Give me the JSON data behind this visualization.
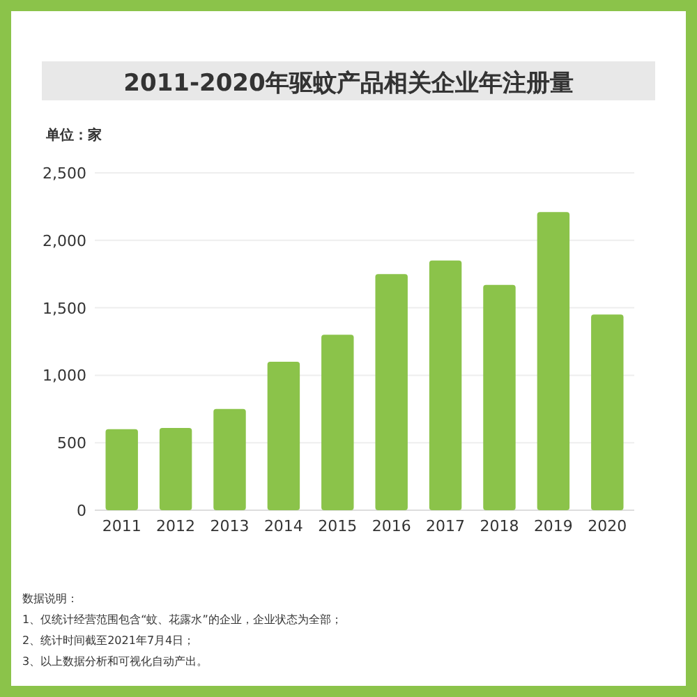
{
  "chart_data": {
    "type": "bar",
    "title": "2011-2020年驱蚊产品相关企业年注册量",
    "ylabel": "单位：家",
    "categories": [
      "2011",
      "2012",
      "2013",
      "2014",
      "2015",
      "2016",
      "2017",
      "2018",
      "2019",
      "2020"
    ],
    "values": [
      600,
      610,
      750,
      1100,
      1300,
      1750,
      1850,
      1670,
      2210,
      1450
    ],
    "color": "#8bc34a",
    "ylim": [
      0,
      2500
    ],
    "yticks": [
      {
        "value": 0,
        "label": "0"
      },
      {
        "value": 500,
        "label": "500"
      },
      {
        "value": 1000,
        "label": "1,000"
      },
      {
        "value": 1500,
        "label": "1,500"
      },
      {
        "value": 2000,
        "label": "2,000"
      },
      {
        "value": 2500,
        "label": "2,500"
      }
    ],
    "grid": "y",
    "annotations": [
      "数据说明：",
      "1、仅统计经营范围包含“蚊、花露水”的企业，企业状态为全部；",
      "2、统计时间截至2021年7月4日；",
      "3、以上数据分析和可视化自动产出。"
    ]
  }
}
